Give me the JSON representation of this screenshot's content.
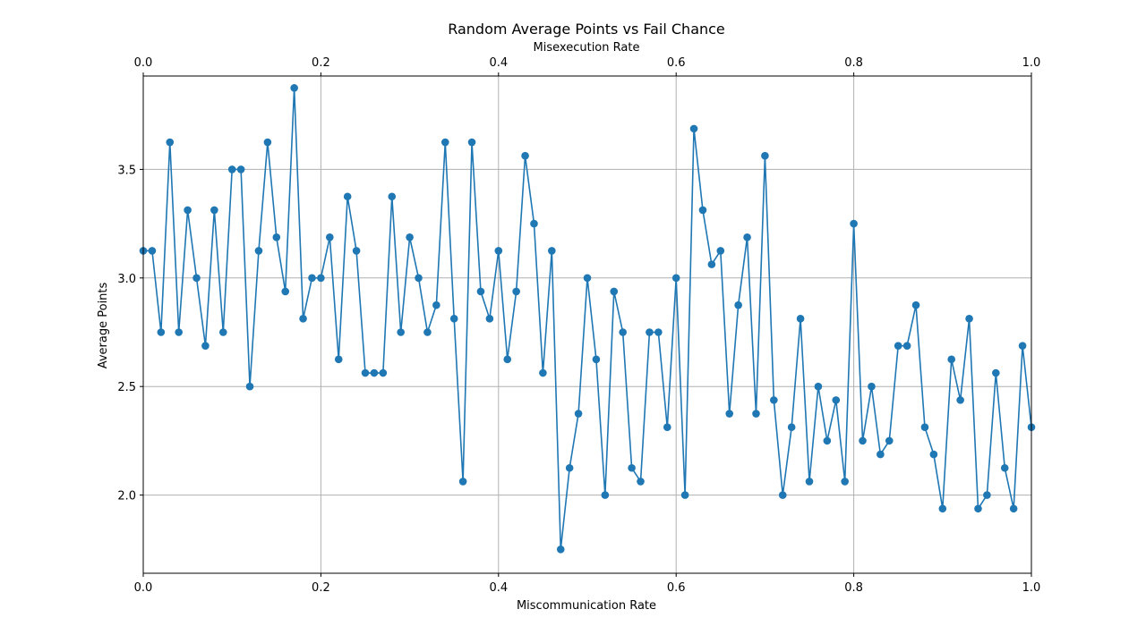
{
  "chart_data": {
    "type": "line",
    "title": "Random Average Points vs Fail Chance",
    "xlabel": "Miscommunication Rate",
    "x2label": "Misexecution Rate",
    "ylabel": "Average Points",
    "xlim": [
      0.0,
      1.0
    ],
    "ylim": [
      1.64,
      3.93
    ],
    "xticks": [
      "0.0",
      "0.2",
      "0.4",
      "0.6",
      "0.8",
      "1.0"
    ],
    "x2ticks": [
      "0.0",
      "0.2",
      "0.4",
      "0.6",
      "0.8",
      "1.0"
    ],
    "yticks": [
      "2.0",
      "2.5",
      "3.0",
      "3.5"
    ],
    "grid": true,
    "line_color": "#1f77b4",
    "marker": "circle",
    "series": [
      {
        "x": [
          0.0,
          0.01,
          0.02,
          0.03,
          0.04,
          0.05,
          0.06,
          0.07,
          0.08,
          0.09,
          0.1,
          0.11,
          0.12,
          0.13,
          0.14,
          0.15,
          0.16,
          0.17,
          0.18,
          0.19,
          0.2,
          0.21,
          0.22,
          0.23,
          0.24,
          0.25,
          0.26,
          0.27,
          0.28,
          0.29,
          0.3,
          0.31,
          0.32,
          0.33,
          0.34,
          0.35,
          0.36,
          0.37,
          0.38,
          0.39,
          0.4,
          0.41,
          0.42,
          0.43,
          0.44,
          0.45,
          0.46,
          0.47,
          0.48,
          0.49,
          0.5,
          0.51,
          0.52,
          0.53,
          0.54,
          0.55,
          0.56,
          0.57,
          0.58,
          0.59,
          0.6,
          0.61,
          0.62,
          0.63,
          0.64,
          0.65,
          0.66,
          0.67,
          0.68,
          0.69,
          0.7,
          0.71,
          0.72,
          0.73,
          0.74,
          0.75,
          0.76,
          0.77,
          0.78,
          0.79,
          0.8,
          0.81,
          0.82,
          0.83,
          0.84,
          0.85,
          0.86,
          0.87,
          0.88,
          0.89,
          0.9,
          0.91,
          0.92,
          0.93,
          0.94,
          0.95,
          0.96,
          0.97,
          0.98,
          0.99,
          1.0
        ],
        "y": [
          3.125,
          3.125,
          2.75,
          3.625,
          2.75,
          3.3125,
          3.0,
          2.6875,
          3.3125,
          2.75,
          3.5,
          3.5,
          2.5,
          3.125,
          3.625,
          3.1875,
          2.9375,
          3.875,
          2.8125,
          3.0,
          3.0,
          3.1875,
          2.625,
          3.375,
          3.125,
          2.5625,
          2.5625,
          2.5625,
          3.375,
          2.75,
          3.1875,
          3.0,
          2.75,
          2.875,
          3.625,
          2.8125,
          2.0625,
          3.625,
          2.9375,
          2.8125,
          3.125,
          2.625,
          2.9375,
          3.5625,
          3.25,
          2.5625,
          3.125,
          1.75,
          2.125,
          2.375,
          3.0,
          2.625,
          2.0,
          2.9375,
          2.75,
          2.125,
          2.0625,
          2.75,
          2.75,
          2.3125,
          3.0,
          2.0,
          3.6875,
          3.3125,
          3.0625,
          3.125,
          2.375,
          2.875,
          3.1875,
          2.375,
          3.5625,
          2.4375,
          2.0,
          2.3125,
          2.8125,
          2.0625,
          2.5,
          2.25,
          2.4375,
          2.0625,
          3.25,
          2.25,
          2.5,
          2.1875,
          2.25,
          2.6875,
          2.6875,
          2.875,
          2.3125,
          2.1875,
          1.9375,
          2.625,
          2.4375,
          2.8125,
          1.9375,
          2.0,
          2.5625,
          2.125,
          1.9375,
          2.6875,
          2.3125
        ]
      }
    ]
  }
}
